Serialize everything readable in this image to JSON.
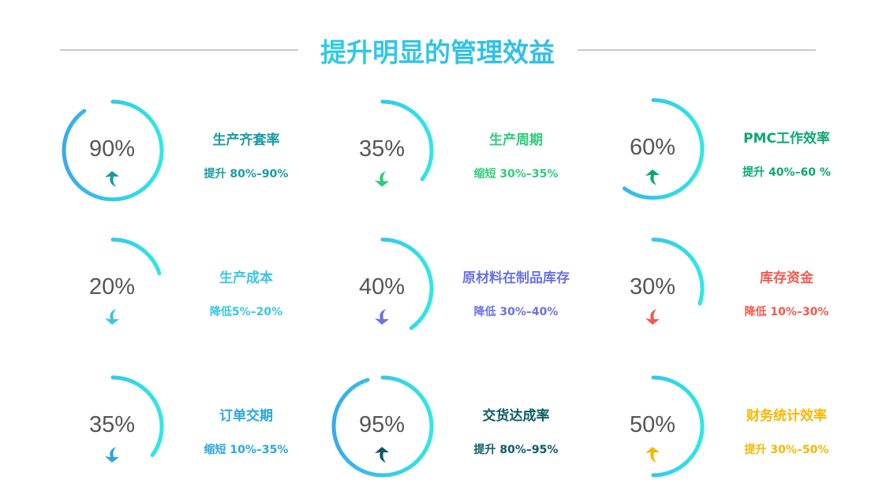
{
  "title": "提升明显的管理效益",
  "items": [
    {
      "value": "90%",
      "percent": 90,
      "name": "生产齐套率",
      "desc": "提升 80%–90%",
      "direction": "up",
      "color": "#1a9aa0"
    },
    {
      "value": "35%",
      "percent": 35,
      "name": "生产周期",
      "desc": "缩短 30%–35%",
      "direction": "down",
      "color": "#2ccc78"
    },
    {
      "value": "60%",
      "percent": 60,
      "name": "PMC工作效率",
      "desc": "提升 40%–60 %",
      "direction": "up",
      "color": "#0aa870"
    },
    {
      "value": "20%",
      "percent": 20,
      "name": "生产成本",
      "desc": "降低5%–20%",
      "direction": "down",
      "color": "#38c6e4"
    },
    {
      "value": "40%",
      "percent": 40,
      "name": "原材料在制品库存",
      "desc": "降低 30%–40%",
      "direction": "down",
      "color": "#6a72e2"
    },
    {
      "value": "30%",
      "percent": 30,
      "name": "库存资金",
      "desc": "降低 10%–30%",
      "direction": "down",
      "color": "#f25a4e"
    },
    {
      "value": "35%",
      "percent": 35,
      "name": "订单交期",
      "desc": "缩短 10%–35%",
      "direction": "down",
      "color": "#2aa6dc"
    },
    {
      "value": "95%",
      "percent": 95,
      "name": "交货达成率",
      "desc": "提升 80%–95%",
      "direction": "up",
      "color": "#0b5c64"
    },
    {
      "value": "50%",
      "percent": 50,
      "name": "财务统计效率",
      "desc": "提升 30%–50%",
      "direction": "up",
      "color": "#f5b800"
    }
  ],
  "ring_colors": {
    "top": "#3aaaee",
    "bottom": "#2ee8e4"
  }
}
